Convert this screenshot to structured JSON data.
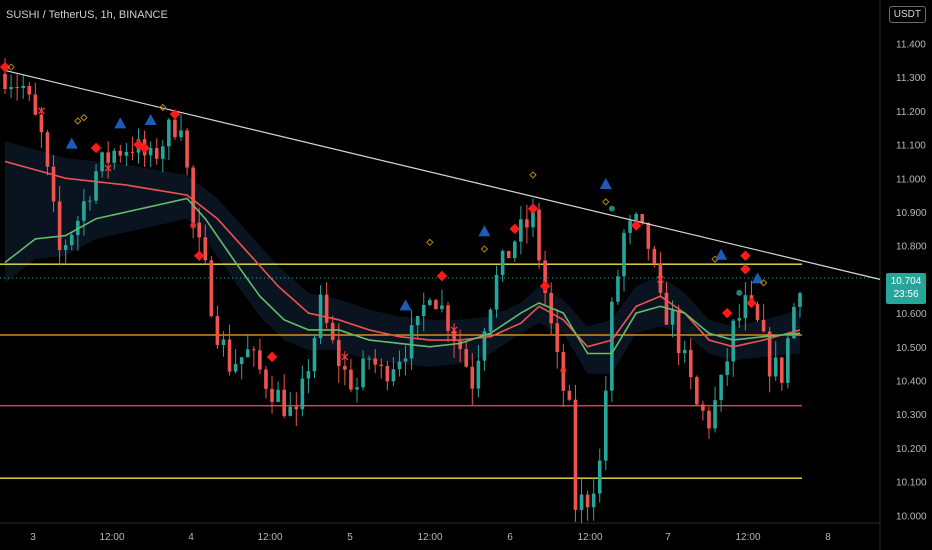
{
  "header": {
    "title": "SUSHI / TetherUS, 1h, BINANCE",
    "currency": "USDT"
  },
  "last_price": {
    "value": "10.704",
    "countdown": "23:56"
  },
  "colors": {
    "up": "#26a69a",
    "down": "#ef5350",
    "ma_slow": "#ef5350",
    "ma_fast": "#66bb6a",
    "trendline": "#d9d9d9",
    "level_yellow": "#f0e442",
    "level_orange": "#f5a623",
    "level_red": "#ff4d4d",
    "cloud": "#1e3a5f"
  },
  "chart_data": {
    "type": "candlestick",
    "x_tick_labels": [
      "3",
      "12:00",
      "4",
      "12:00",
      "5",
      "12:00",
      "6",
      "12:00",
      "7",
      "12:00",
      "8"
    ],
    "y_tick_labels": [
      "11.400",
      "11.300",
      "11.200",
      "11.100",
      "11.000",
      "10.900",
      "10.800",
      "10.700",
      "10.600",
      "10.500",
      "10.400",
      "10.300",
      "10.200",
      "10.100",
      "10.000"
    ],
    "ylim": [
      9.98,
      11.44
    ],
    "bars": 132,
    "trendline": {
      "from": [
        0,
        11.32
      ],
      "to": [
        131,
        10.75
      ]
    },
    "horizontal_levels": [
      {
        "price": 10.745,
        "color": "yellow"
      },
      {
        "price": 10.535,
        "color": "orange"
      },
      {
        "price": 10.325,
        "color": "red"
      },
      {
        "price": 10.11,
        "color": "yellow"
      }
    ],
    "price_path": [
      [
        0,
        11.31
      ],
      [
        3,
        11.27
      ],
      [
        6,
        11.12
      ],
      [
        9,
        10.78
      ],
      [
        12,
        10.88
      ],
      [
        15,
        11.02
      ],
      [
        18,
        11.08
      ],
      [
        21,
        11.1
      ],
      [
        24,
        11.05
      ],
      [
        27,
        11.14
      ],
      [
        29,
        11.18
      ],
      [
        31,
        10.86
      ],
      [
        33,
        10.72
      ],
      [
        35,
        10.55
      ],
      [
        37,
        10.45
      ],
      [
        40,
        10.48
      ],
      [
        43,
        10.4
      ],
      [
        46,
        10.33
      ],
      [
        48,
        10.28
      ],
      [
        50,
        10.45
      ],
      [
        52,
        10.62
      ],
      [
        54,
        10.5
      ],
      [
        56,
        10.42
      ],
      [
        58,
        10.38
      ],
      [
        60,
        10.47
      ],
      [
        62,
        10.42
      ],
      [
        65,
        10.48
      ],
      [
        68,
        10.55
      ],
      [
        70,
        10.68
      ],
      [
        73,
        10.58
      ],
      [
        75,
        10.5
      ],
      [
        77,
        10.4
      ],
      [
        79,
        10.58
      ],
      [
        81,
        10.7
      ],
      [
        84,
        10.82
      ],
      [
        87,
        10.88
      ],
      [
        89,
        10.66
      ],
      [
        91,
        10.45
      ],
      [
        93,
        10.3
      ],
      [
        94,
        10.03
      ],
      [
        96,
        10.05
      ],
      [
        98,
        10.15
      ],
      [
        100,
        10.6
      ],
      [
        102,
        10.83
      ],
      [
        104,
        10.86
      ],
      [
        106,
        10.8
      ],
      [
        108,
        10.62
      ],
      [
        110,
        10.58
      ],
      [
        112,
        10.45
      ],
      [
        114,
        10.32
      ],
      [
        116,
        10.28
      ],
      [
        118,
        10.38
      ],
      [
        120,
        10.55
      ],
      [
        122,
        10.62
      ],
      [
        124,
        10.56
      ],
      [
        126,
        10.45
      ],
      [
        128,
        10.42
      ],
      [
        130,
        10.62
      ],
      [
        131,
        10.7
      ]
    ],
    "ma_slow_path": [
      [
        0,
        11.05
      ],
      [
        10,
        11.0
      ],
      [
        20,
        10.98
      ],
      [
        30,
        10.95
      ],
      [
        35,
        10.88
      ],
      [
        40,
        10.78
      ],
      [
        45,
        10.68
      ],
      [
        50,
        10.6
      ],
      [
        55,
        10.58
      ],
      [
        60,
        10.55
      ],
      [
        65,
        10.53
      ],
      [
        70,
        10.52
      ],
      [
        75,
        10.52
      ],
      [
        80,
        10.53
      ],
      [
        85,
        10.57
      ],
      [
        88,
        10.62
      ],
      [
        92,
        10.58
      ],
      [
        96,
        10.5
      ],
      [
        100,
        10.52
      ],
      [
        104,
        10.62
      ],
      [
        108,
        10.65
      ],
      [
        112,
        10.6
      ],
      [
        116,
        10.52
      ],
      [
        120,
        10.5
      ],
      [
        125,
        10.52
      ],
      [
        131,
        10.55
      ]
    ],
    "ma_fast_path": [
      [
        0,
        10.75
      ],
      [
        5,
        10.82
      ],
      [
        10,
        10.83
      ],
      [
        15,
        10.88
      ],
      [
        20,
        10.9
      ],
      [
        25,
        10.92
      ],
      [
        30,
        10.94
      ],
      [
        33,
        10.88
      ],
      [
        38,
        10.75
      ],
      [
        42,
        10.65
      ],
      [
        46,
        10.58
      ],
      [
        50,
        10.55
      ],
      [
        55,
        10.55
      ],
      [
        60,
        10.52
      ],
      [
        65,
        10.51
      ],
      [
        70,
        10.5
      ],
      [
        75,
        10.51
      ],
      [
        80,
        10.54
      ],
      [
        85,
        10.6
      ],
      [
        88,
        10.63
      ],
      [
        92,
        10.6
      ],
      [
        96,
        10.48
      ],
      [
        100,
        10.48
      ],
      [
        104,
        10.6
      ],
      [
        108,
        10.62
      ],
      [
        112,
        10.6
      ],
      [
        116,
        10.54
      ],
      [
        120,
        10.52
      ],
      [
        125,
        10.53
      ],
      [
        131,
        10.54
      ]
    ],
    "markers": [
      {
        "bar": 0,
        "price": 11.33,
        "shape": "diamond",
        "color": "#ff1a1a"
      },
      {
        "bar": 1,
        "price": 11.33,
        "shape": "diamond",
        "color": "#b8860b"
      },
      {
        "bar": 6,
        "price": 11.2,
        "shape": "x",
        "color": "#ff3333"
      },
      {
        "bar": 12,
        "price": 11.17,
        "shape": "diamond",
        "color": "#b8860b"
      },
      {
        "bar": 13,
        "price": 11.18,
        "shape": "diamond",
        "color": "#b8860b"
      },
      {
        "bar": 11,
        "price": 11.1,
        "shape": "triangle",
        "color": "#1e5bb8"
      },
      {
        "bar": 15,
        "price": 11.09,
        "shape": "diamond",
        "color": "#ff1a1a"
      },
      {
        "bar": 17,
        "price": 11.03,
        "shape": "x",
        "color": "#ff3333"
      },
      {
        "bar": 19,
        "price": 11.16,
        "shape": "triangle",
        "color": "#1e5bb8"
      },
      {
        "bar": 22,
        "price": 11.1,
        "shape": "diamond",
        "color": "#ff1a1a"
      },
      {
        "bar": 23,
        "price": 11.09,
        "shape": "diamond",
        "color": "#ff1a1a"
      },
      {
        "bar": 24,
        "price": 11.17,
        "shape": "triangle",
        "color": "#1e5bb8"
      },
      {
        "bar": 26,
        "price": 11.21,
        "shape": "diamond",
        "color": "#b8860b"
      },
      {
        "bar": 28,
        "price": 11.19,
        "shape": "diamond",
        "color": "#ff1a1a"
      },
      {
        "bar": 31,
        "price": 10.86,
        "shape": "dot",
        "color": "#ff3333"
      },
      {
        "bar": 32,
        "price": 10.77,
        "shape": "diamond",
        "color": "#ff1a1a"
      },
      {
        "bar": 44,
        "price": 10.47,
        "shape": "diamond",
        "color": "#ff1a1a"
      },
      {
        "bar": 56,
        "price": 10.47,
        "shape": "x",
        "color": "#ff3333"
      },
      {
        "bar": 66,
        "price": 10.62,
        "shape": "triangle",
        "color": "#1e5bb8"
      },
      {
        "bar": 70,
        "price": 10.81,
        "shape": "diamond",
        "color": "#b8860b"
      },
      {
        "bar": 72,
        "price": 10.71,
        "shape": "diamond",
        "color": "#ff1a1a"
      },
      {
        "bar": 74,
        "price": 10.55,
        "shape": "x",
        "color": "#ff3333"
      },
      {
        "bar": 79,
        "price": 10.79,
        "shape": "diamond",
        "color": "#b8860b"
      },
      {
        "bar": 79,
        "price": 10.84,
        "shape": "triangle",
        "color": "#1e5bb8"
      },
      {
        "bar": 84,
        "price": 10.85,
        "shape": "diamond",
        "color": "#ff1a1a"
      },
      {
        "bar": 87,
        "price": 10.91,
        "shape": "diamond",
        "color": "#ff1a1a"
      },
      {
        "bar": 87,
        "price": 11.01,
        "shape": "diamond",
        "color": "#b8860b"
      },
      {
        "bar": 89,
        "price": 10.68,
        "shape": "diamond",
        "color": "#ff1a1a"
      },
      {
        "bar": 92,
        "price": 10.43,
        "shape": "dot",
        "color": "#ff3333"
      },
      {
        "bar": 99,
        "price": 10.98,
        "shape": "triangle",
        "color": "#1e5bb8"
      },
      {
        "bar": 99,
        "price": 10.93,
        "shape": "diamond",
        "color": "#b8860b"
      },
      {
        "bar": 100,
        "price": 10.91,
        "shape": "dot",
        "color": "#26a69a"
      },
      {
        "bar": 104,
        "price": 10.86,
        "shape": "diamond",
        "color": "#ff1a1a"
      },
      {
        "bar": 108,
        "price": 10.7,
        "shape": "x",
        "color": "#ff3333"
      },
      {
        "bar": 117,
        "price": 10.76,
        "shape": "diamond",
        "color": "#b8860b"
      },
      {
        "bar": 118,
        "price": 10.77,
        "shape": "triangle",
        "color": "#1e5bb8"
      },
      {
        "bar": 122,
        "price": 10.77,
        "shape": "diamond",
        "color": "#ff1a1a"
      },
      {
        "bar": 122,
        "price": 10.73,
        "shape": "diamond",
        "color": "#ff1a1a"
      },
      {
        "bar": 121,
        "price": 10.66,
        "shape": "dot",
        "color": "#26a69a"
      },
      {
        "bar": 124,
        "price": 10.7,
        "shape": "triangle",
        "color": "#1e5bb8"
      },
      {
        "bar": 125,
        "price": 10.69,
        "shape": "diamond",
        "color": "#b8860b"
      },
      {
        "bar": 123,
        "price": 10.63,
        "shape": "diamond",
        "color": "#ff1a1a"
      },
      {
        "bar": 119,
        "price": 10.6,
        "shape": "diamond",
        "color": "#ff1a1a"
      }
    ]
  }
}
